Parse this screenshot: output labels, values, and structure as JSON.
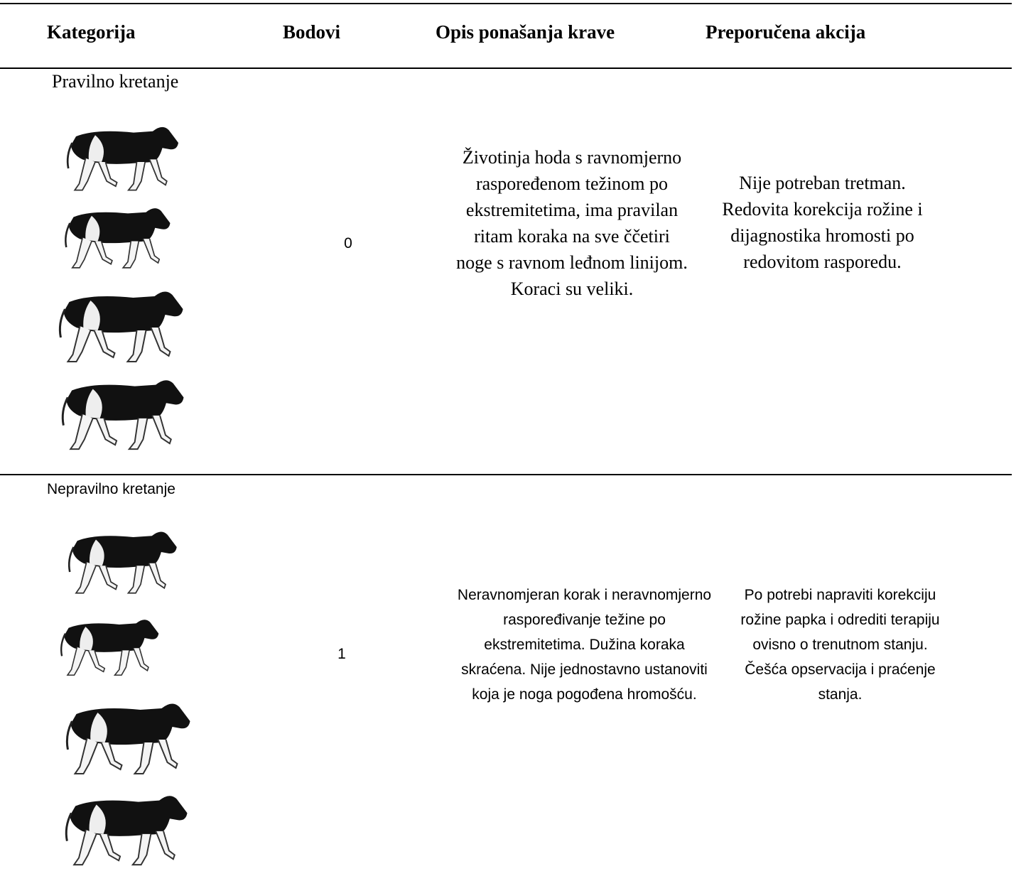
{
  "header": {
    "columns": [
      "Kategorija",
      "Bodovi",
      "Opis ponašanja krave",
      "Preporučena akcija"
    ]
  },
  "table": {
    "rows": [
      {
        "category": "Pravilno kretanje",
        "score": 0,
        "description": "Životinja hoda s ravnomjerno raspoređenom težinom po ekstremitetima, ima pravilan ritam koraka na sve ččetiri noge s ravnom leđnom linijom. Koraci su veliki.",
        "action": "Nije potreban tretman. Redovita korekcija rožine i dijagnostika hromosti po redovitom rasporedu."
      },
      {
        "category": "Nepravilno kretanje",
        "score": 1,
        "description": "Neravnomjeran korak i neravnomjerno raspoređivanje težine po ekstremitetima. Dužina koraka skraćena. Nije jednostavno ustanoviti  koja je noga pogođena hromošću.",
        "action": "Po potrebi  napraviti korekciju rožine papka i odrediti terapiju ovisno o trenutnom stanju. Češća opservacija i praćenje stanja."
      }
    ]
  }
}
